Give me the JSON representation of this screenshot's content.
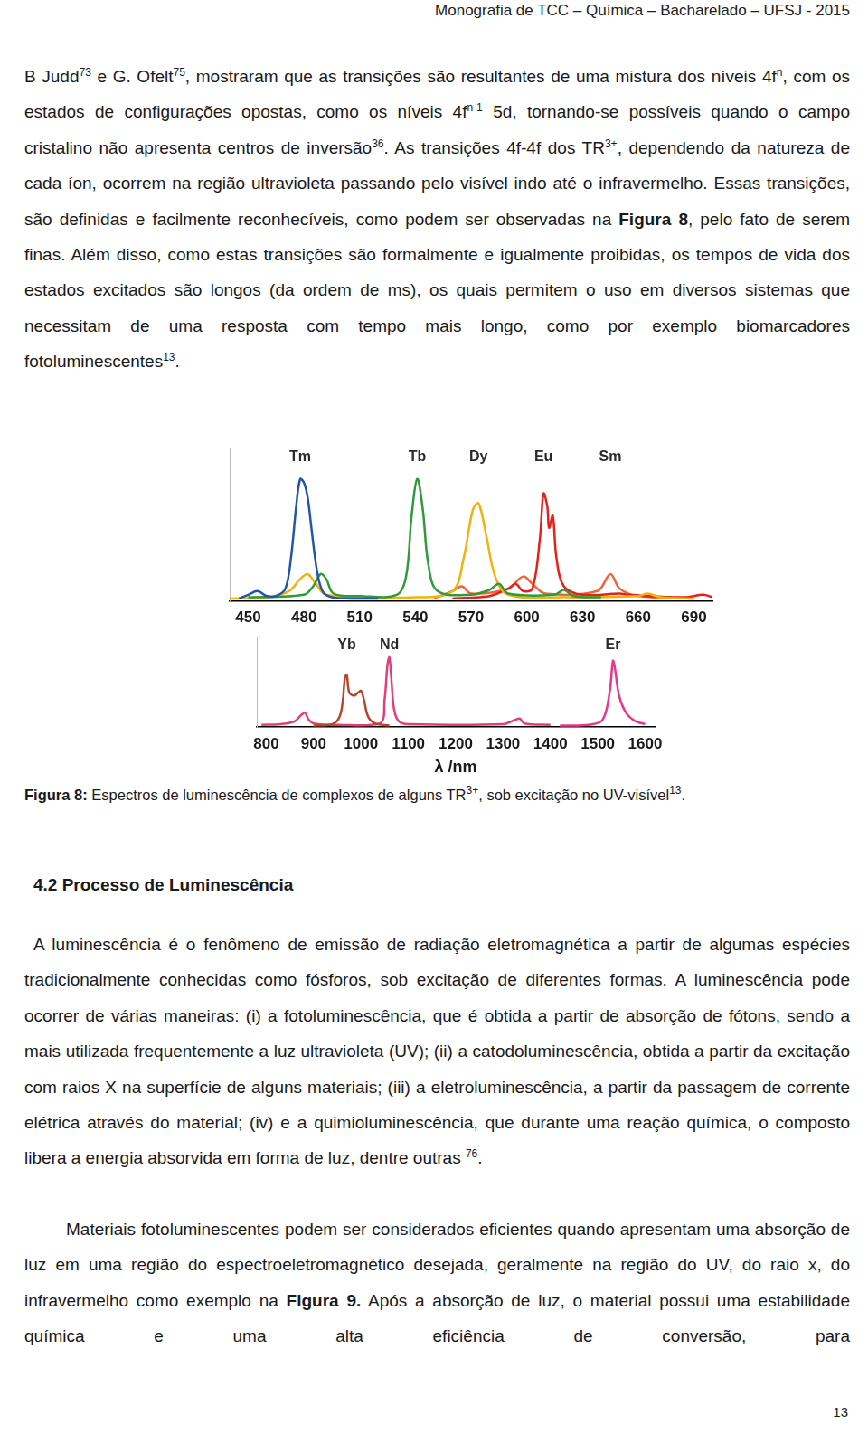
{
  "document": {
    "header": "Monografia de TCC – Química – Bacharelado – UFSJ - 2015",
    "paragraphs_before": [
      [
        "B Judd",
        {
          "sup": "73"
        },
        " e G. Ofelt",
        {
          "sup": "75"
        },
        ", mostraram que as transições são resultantes de uma mistura dos níveis 4f",
        {
          "sup": "n"
        },
        ", com os estados de configurações opostas, como os níveis 4f",
        {
          "sup": "n-1"
        },
        " 5d, tornando-se possíveis quando o campo cristalino não apresenta centros de inversão",
        {
          "sup": "36"
        },
        ". As transições 4f-4f dos TR",
        {
          "sup": "3+"
        },
        ", dependendo da natureza de cada íon, ocorrem na região ultravioleta passando pelo visível indo até o infravermelho. Essas transições, são definidas e facilmente reconhecíveis, como podem ser observadas na ",
        {
          "b": "Figura 8"
        },
        ", pelo fato de serem finas. Além disso, como estas transições são formalmente e igualmente proibidas, os tempos de vida dos estados excitados são longos (da ordem de ms), os quais permitem o uso em diversos sistemas que necessitam de uma resposta com tempo mais longo, como por exemplo biomarcadores fotoluminescentes",
        {
          "sup": "13"
        },
        "."
      ]
    ],
    "caption": [
      {
        "b": "Figura 8:"
      },
      " Espectros de luminescência de complexos de alguns TR",
      {
        "sup": "3+"
      },
      ", sob excitação no UV-visível",
      {
        "sup": "13"
      },
      "."
    ],
    "section": "4.2 Processo de Luminescência",
    "paragraphs_after": [
      [
        "A luminescência é o fenômeno de emissão de radiação eletromagnética a partir de algumas espécies tradicionalmente conhecidas como fósforos, sob excitação de diferentes formas. A luminescência pode ocorrer de várias maneiras: (i) a fotoluminescência, que é obtida a partir de absorção  de fótons, sendo a mais utilizada frequentemente a luz ultravioleta (UV); (ii) a catodoluminescência, obtida a partir da excitação com raios X na superfície de alguns materiais; (iii) a eletroluminescência, a partir da passagem  de corrente elétrica através do material; (iv) e a quimioluminescência, que durante uma reação química, o composto libera a energia absorvida em forma de luz, dentre outras ",
        {
          "sup": "76"
        },
        "."
      ],
      [
        "Materiais fotoluminescentes podem ser considerados eficientes quando apresentam uma absorção de luz em uma região do espectroeletromagnético desejada, geralmente na região do UV, do raio x, do infravermelho como exemplo na ",
        {
          "b": "Figura 9."
        },
        " Após a absorção de luz, o material possui  uma estabilidade química e uma alta eficiência de conversão, para"
      ]
    ],
    "page_number": "13"
  },
  "chart_data": [
    {
      "type": "line",
      "xlim": [
        440,
        700
      ],
      "xticks": [
        450,
        480,
        510,
        540,
        570,
        600,
        630,
        660,
        690
      ],
      "ylim": [
        0,
        1.25
      ],
      "grid": false,
      "legend": false,
      "tick_labels": "x",
      "series": [
        {
          "name": "Tm",
          "color": "#2356a8",
          "values": [
            [
              445,
              0.02
            ],
            [
              450,
              0.05
            ],
            [
              455,
              0.08
            ],
            [
              460,
              0.04
            ],
            [
              465,
              0.04
            ],
            [
              470,
              0.1
            ],
            [
              473,
              0.35
            ],
            [
              476,
              0.8
            ],
            [
              478,
              1.0
            ],
            [
              480,
              0.97
            ],
            [
              482,
              0.85
            ],
            [
              484,
              0.6
            ],
            [
              487,
              0.25
            ],
            [
              490,
              0.08
            ],
            [
              495,
              0.03
            ],
            [
              505,
              0.02
            ],
            [
              520,
              0.02
            ]
          ]
        },
        {
          "name": "Tb",
          "color": "#2e9a3a",
          "values": [
            [
              450,
              0.03
            ],
            [
              480,
              0.05
            ],
            [
              485,
              0.12
            ],
            [
              489,
              0.22
            ],
            [
              492,
              0.18
            ],
            [
              496,
              0.06
            ],
            [
              510,
              0.04
            ],
            [
              530,
              0.05
            ],
            [
              535,
              0.2
            ],
            [
              538,
              0.7
            ],
            [
              541,
              1.0
            ],
            [
              544,
              0.75
            ],
            [
              547,
              0.3
            ],
            [
              552,
              0.08
            ],
            [
              570,
              0.05
            ],
            [
              580,
              0.09
            ],
            [
              585,
              0.14
            ],
            [
              590,
              0.06
            ],
            [
              615,
              0.05
            ],
            [
              620,
              0.09
            ],
            [
              625,
              0.04
            ],
            [
              640,
              0.03
            ]
          ]
        },
        {
          "name": "Dy",
          "color": "#f2b20c",
          "values": [
            [
              440,
              0.02
            ],
            [
              460,
              0.03
            ],
            [
              472,
              0.08
            ],
            [
              478,
              0.18
            ],
            [
              482,
              0.22
            ],
            [
              486,
              0.15
            ],
            [
              492,
              0.05
            ],
            [
              540,
              0.03
            ],
            [
              560,
              0.08
            ],
            [
              566,
              0.35
            ],
            [
              571,
              0.75
            ],
            [
              574,
              0.8
            ],
            [
              578,
              0.55
            ],
            [
              583,
              0.2
            ],
            [
              590,
              0.05
            ],
            [
              620,
              0.03
            ],
            [
              660,
              0.04
            ],
            [
              665,
              0.06
            ],
            [
              672,
              0.03
            ],
            [
              690,
              0.02
            ]
          ]
        },
        {
          "name": "Eu",
          "color": "#e3221c",
          "values": [
            [
              560,
              0.02
            ],
            [
              580,
              0.04
            ],
            [
              590,
              0.1
            ],
            [
              594,
              0.14
            ],
            [
              598,
              0.08
            ],
            [
              603,
              0.1
            ],
            [
              607,
              0.5
            ],
            [
              609,
              0.88
            ],
            [
              611,
              0.78
            ],
            [
              612,
              0.6
            ],
            [
              614,
              0.7
            ],
            [
              616,
              0.35
            ],
            [
              620,
              0.12
            ],
            [
              630,
              0.05
            ],
            [
              650,
              0.06
            ],
            [
              655,
              0.05
            ],
            [
              685,
              0.03
            ],
            [
              695,
              0.05
            ],
            [
              700,
              0.03
            ]
          ]
        },
        {
          "name": "Sm",
          "color": "#f0643c",
          "values": [
            [
              550,
              0.02
            ],
            [
              560,
              0.08
            ],
            [
              565,
              0.12
            ],
            [
              570,
              0.06
            ],
            [
              590,
              0.1
            ],
            [
              598,
              0.2
            ],
            [
              603,
              0.14
            ],
            [
              610,
              0.06
            ],
            [
              638,
              0.08
            ],
            [
              645,
              0.22
            ],
            [
              650,
              0.1
            ],
            [
              660,
              0.04
            ],
            [
              690,
              0.02
            ]
          ]
        }
      ]
    },
    {
      "type": "line",
      "x_label": "λ /nm",
      "xlim": [
        780,
        1620
      ],
      "xticks": [
        800,
        900,
        1000,
        1100,
        1200,
        1300,
        1400,
        1500,
        1600
      ],
      "ylim": [
        0,
        1.3
      ],
      "grid": false,
      "legend": false,
      "tick_labels": "x",
      "series": [
        {
          "name": "Yb",
          "color": "#b5482a",
          "values": [
            [
              900,
              0.02
            ],
            [
              940,
              0.04
            ],
            [
              955,
              0.15
            ],
            [
              962,
              0.4
            ],
            [
              966,
              0.7
            ],
            [
              970,
              0.75
            ],
            [
              975,
              0.5
            ],
            [
              985,
              0.45
            ],
            [
              995,
              0.5
            ],
            [
              1000,
              0.52
            ],
            [
              1006,
              0.4
            ],
            [
              1015,
              0.15
            ],
            [
              1030,
              0.05
            ],
            [
              1060,
              0.02
            ]
          ]
        },
        {
          "name": "Nd",
          "color": "#e0407a",
          "values": [
            [
              790,
              0.03
            ],
            [
              830,
              0.04
            ],
            [
              860,
              0.08
            ],
            [
              875,
              0.18
            ],
            [
              882,
              0.2
            ],
            [
              890,
              0.1
            ],
            [
              900,
              0.05
            ],
            [
              950,
              0.03
            ],
            [
              1040,
              0.05
            ],
            [
              1050,
              0.4
            ],
            [
              1056,
              0.9
            ],
            [
              1060,
              1.0
            ],
            [
              1064,
              0.7
            ],
            [
              1070,
              0.25
            ],
            [
              1080,
              0.08
            ],
            [
              1100,
              0.04
            ],
            [
              1300,
              0.04
            ],
            [
              1325,
              0.1
            ],
            [
              1335,
              0.12
            ],
            [
              1345,
              0.05
            ],
            [
              1400,
              0.03
            ]
          ]
        },
        {
          "name": "Er",
          "color": "#e8388a",
          "values": [
            [
              1420,
              0.02
            ],
            [
              1480,
              0.03
            ],
            [
              1510,
              0.1
            ],
            [
              1525,
              0.5
            ],
            [
              1532,
              0.95
            ],
            [
              1536,
              0.85
            ],
            [
              1545,
              0.45
            ],
            [
              1560,
              0.2
            ],
            [
              1580,
              0.08
            ],
            [
              1600,
              0.04
            ]
          ]
        }
      ]
    }
  ]
}
